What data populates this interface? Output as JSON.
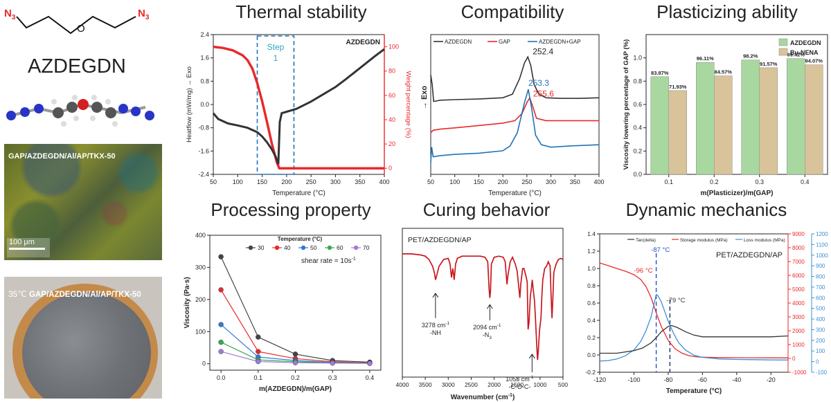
{
  "molecule": {
    "name": "AZDEGDN",
    "n3_left": "N",
    "n3_right": "N",
    "n3_sub": "3",
    "oxygen": "O"
  },
  "photos": {
    "sem_label": "GAP/AZDEGDN/Al/AP/TKX-50",
    "sem_scale": "100 µm",
    "photo_label_prefix": "35℃",
    "photo_label": "GAP/AZDEGDN/Al/AP/TKX-50"
  },
  "titles": {
    "thermal": "Thermal stability",
    "compat": "Compatibility",
    "plastic": "Plasticizing ability",
    "processing": "Processing property",
    "curing": "Curing behavior",
    "dynamic": "Dynamic mechanics"
  },
  "chart_data": [
    {
      "id": "thermal",
      "type": "line",
      "legend_label": "AZDEGDN",
      "xlabel": "Temperature (°C)",
      "ylabel_left": "Heatflow (mW/mg)",
      "ylabel_left_exo": "Exo",
      "ylabel_right": "Weight percentage (%)",
      "xlim": [
        50,
        400
      ],
      "ylim_left": [
        -2.4,
        2.4
      ],
      "ylim_right": [
        -5,
        110
      ],
      "xticks": [
        50,
        100,
        150,
        200,
        250,
        300,
        350,
        400
      ],
      "yticks_left": [
        -2.4,
        -1.6,
        -0.8,
        0.0,
        0.8,
        1.6,
        2.4
      ],
      "yticks_right": [
        0,
        20,
        40,
        60,
        80,
        100
      ],
      "annotation": "Step\n1",
      "annotation_lines": [
        "Step",
        "1"
      ],
      "step_box": [
        140,
        215
      ],
      "heatflow": {
        "x": [
          50,
          60,
          80,
          100,
          120,
          140,
          150,
          160,
          170,
          178,
          183,
          186,
          190,
          200,
          220,
          250,
          280,
          300,
          320,
          350,
          380,
          400
        ],
        "y": [
          -0.3,
          -0.5,
          -0.65,
          -0.72,
          -0.8,
          -0.95,
          -1.1,
          -1.3,
          -1.55,
          -1.8,
          -2.05,
          -0.6,
          -0.3,
          -0.25,
          -0.15,
          0.1,
          0.4,
          0.6,
          0.85,
          1.25,
          1.65,
          1.9
        ]
      },
      "weight": {
        "x": [
          50,
          70,
          90,
          110,
          120,
          130,
          140,
          150,
          160,
          170,
          180,
          185,
          200,
          250,
          300,
          350,
          400
        ],
        "y": [
          100,
          99,
          97,
          93,
          89,
          82,
          70,
          55,
          38,
          20,
          5,
          0,
          0,
          0,
          0,
          0,
          0
        ]
      },
      "colors": {
        "heatflow": "#333333",
        "weight": "#e8292b",
        "box": "#1e73b8",
        "annotation": "#2aa8b8"
      }
    },
    {
      "id": "compat",
      "type": "line",
      "xlabel": "Temperature (°C)",
      "ylabel": "Exo",
      "xlim": [
        50,
        400
      ],
      "ylim": [
        0,
        100
      ],
      "xticks": [
        50,
        100,
        150,
        200,
        250,
        300,
        350,
        400
      ],
      "series": [
        {
          "name": "AZDEGDN",
          "color": "#333333",
          "x": [
            50,
            53,
            56,
            70,
            100,
            150,
            200,
            220,
            235,
            245,
            252,
            258,
            265,
            275,
            290,
            320,
            360,
            400
          ],
          "y": [
            78,
            70,
            56,
            57,
            57.5,
            58,
            59,
            62,
            75,
            88,
            93,
            86,
            70,
            62,
            59,
            58.5,
            58.5,
            59
          ]
        },
        {
          "name": "GAP",
          "color": "#e8292b",
          "x": [
            50,
            55,
            70,
            100,
            150,
            200,
            225,
            240,
            250,
            256,
            262,
            270,
            290,
            320,
            360,
            400
          ],
          "y": [
            30,
            32,
            33,
            34,
            36,
            38,
            40,
            46,
            55,
            59,
            52,
            42,
            40,
            40,
            40,
            40
          ]
        },
        {
          "name": "AZDEGDN+GAP",
          "color": "#1e73b8",
          "x": [
            50,
            52,
            55,
            70,
            100,
            150,
            200,
            215,
            230,
            245,
            253,
            260,
            268,
            280,
            300,
            340,
            400
          ],
          "y": [
            5,
            18,
            10,
            11,
            12,
            13,
            15,
            19,
            30,
            55,
            66,
            50,
            28,
            20,
            18,
            19,
            20
          ]
        }
      ],
      "annotations": [
        {
          "text": "252.4",
          "color": "#222222"
        },
        {
          "text": "253.3",
          "color": "#1e73b8"
        },
        {
          "text": "255.6",
          "color": "#e8292b"
        }
      ]
    },
    {
      "id": "plastic",
      "type": "bar",
      "categories": [
        "0.1",
        "0.2",
        "0.3",
        "0.4"
      ],
      "series": [
        {
          "name": "AZDEGDN",
          "values": [
            83.87,
            96.11,
            98.2,
            99.42
          ],
          "labels": [
            "83.87%",
            "96.11%",
            "98.2%",
            "99.42%"
          ],
          "color": "#a8d8a0"
        },
        {
          "name": "Bu-NENA",
          "values": [
            71.93,
            84.57,
            91.57,
            94.07
          ],
          "labels": [
            "71.93%",
            "84.57%",
            "91.57%",
            "94.07%"
          ],
          "color": "#d9c39a"
        }
      ],
      "xlabel": "m(Plasticizer)/m(GAP)",
      "ylabel": "Viscosity lowering percentage of GAP (%)",
      "ylim": [
        0,
        1.0
      ],
      "yticks": [
        0.0,
        0.2,
        0.4,
        0.6,
        0.8,
        1.0
      ]
    },
    {
      "id": "processing",
      "type": "scatter",
      "x": [
        0.0,
        0.1,
        0.2,
        0.3,
        0.4
      ],
      "series": [
        {
          "name": "30",
          "color": "#444444",
          "values": [
            333,
            83,
            30,
            10,
            5
          ]
        },
        {
          "name": "40",
          "color": "#e8292b",
          "values": [
            230,
            38,
            16,
            6,
            3
          ]
        },
        {
          "name": "50",
          "color": "#2f7bd8",
          "values": [
            122,
            21,
            10,
            4,
            2
          ]
        },
        {
          "name": "60",
          "color": "#33aa55",
          "values": [
            67,
            12,
            6,
            3,
            1.5
          ]
        },
        {
          "name": "70",
          "color": "#a07ad6",
          "values": [
            38,
            7,
            3,
            2,
            1
          ]
        }
      ],
      "legend_title": "Temperature (°C)",
      "annotation": "shear rate = 10s",
      "annotation_sup": "-1",
      "xlabel": "m(AZDEGDN)/m(GAP)",
      "ylabel": "Viscosity (Pa·s)",
      "xlim": [
        -0.03,
        0.43
      ],
      "ylim": [
        -20,
        400
      ],
      "xticks": [
        0.0,
        0.1,
        0.2,
        0.3,
        0.4
      ],
      "yticks": [
        0,
        100,
        200,
        300,
        400
      ]
    },
    {
      "id": "curing",
      "type": "line",
      "label": "PET/AZDEGDN/AP",
      "xlabel": "Wavenumber (cm",
      "xlabel_sup": "-1",
      "xlabel_end": ")",
      "xlim": [
        4000,
        500
      ],
      "xticks": [
        4000,
        3500,
        3000,
        2500,
        2000,
        1500,
        1000,
        500
      ],
      "ylim": [
        0,
        100
      ],
      "spectrum": {
        "x": [
          4000,
          3800,
          3600,
          3500,
          3420,
          3340,
          3300,
          3278,
          3250,
          3200,
          3100,
          3000,
          2960,
          2930,
          2900,
          2870,
          2840,
          2800,
          2700,
          2500,
          2300,
          2200,
          2140,
          2110,
          2094,
          2080,
          2060,
          2000,
          1900,
          1800,
          1760,
          1735,
          1720,
          1700,
          1650,
          1600,
          1540,
          1500,
          1460,
          1440,
          1420,
          1380,
          1350,
          1300,
          1280,
          1260,
          1240,
          1210,
          1190,
          1170,
          1150,
          1120,
          1100,
          1080,
          1060,
          1053,
          1040,
          1010,
          980,
          960,
          940,
          900,
          860,
          820,
          780,
          760,
          740,
          720,
          700,
          680,
          650,
          600,
          550,
          500
        ],
        "y": [
          97,
          97,
          96,
          95,
          92,
          86,
          80,
          74,
          78,
          86,
          92,
          93,
          88,
          76,
          84,
          74,
          88,
          93,
          95,
          95,
          95,
          94,
          90,
          66,
          58,
          64,
          88,
          94,
          95,
          94,
          90,
          78,
          70,
          78,
          90,
          94,
          88,
          82,
          66,
          58,
          70,
          84,
          84,
          76,
          72,
          30,
          36,
          60,
          66,
          74,
          66,
          55,
          40,
          22,
          6,
          3,
          10,
          30,
          40,
          60,
          74,
          84,
          86,
          90,
          86,
          60,
          40,
          58,
          80,
          84,
          88,
          92,
          93,
          92
        ]
      },
      "annotations": [
        {
          "lines": [
            "3278 cm",
            "-NH"
          ],
          "sup": "-1"
        },
        {
          "lines": [
            "2094 cm",
            "-N"
          ],
          "sup": "-1",
          "sub": "3"
        },
        {
          "lines": [
            "1053 cm",
            "-C-O-C-"
          ],
          "sup": "-1"
        }
      ],
      "color": "#c8161d"
    },
    {
      "id": "dynamic",
      "type": "line",
      "label": "PET/AZDEGDN/AP",
      "xlabel": "Temperature (°C)",
      "xlim": [
        -120,
        -10
      ],
      "xticks": [
        -120,
        -100,
        -80,
        -60,
        -40,
        -20
      ],
      "ylim_left": [
        -0.2,
        1.4
      ],
      "yticks_left": [
        -0.2,
        0.0,
        0.2,
        0.4,
        0.6,
        0.8,
        1.0,
        1.2,
        1.4
      ],
      "ylim_right1": [
        -1000,
        9000
      ],
      "yticks_right1": [
        -1000,
        0,
        1000,
        2000,
        3000,
        4000,
        5000,
        6000,
        7000,
        8000,
        9000
      ],
      "ylim_right2": [
        -100,
        1200
      ],
      "yticks_right2": [
        -100,
        0,
        100,
        200,
        300,
        400,
        500,
        600,
        700,
        800,
        900,
        1000,
        1100,
        1200
      ],
      "legend": [
        "Tan(delta)",
        "Storage modulus (MPa)",
        "Loss modulus (MPa)"
      ],
      "annotations": [
        {
          "text": "-96 °C",
          "color": "#e8292b"
        },
        {
          "text": "-87 °C",
          "color": "#1e4fd0"
        },
        {
          "text": "-79 °C",
          "color": "#333333"
        }
      ],
      "vlines": [
        -87,
        -79
      ],
      "tan_delta": {
        "x": [
          -120,
          -110,
          -100,
          -95,
          -90,
          -87,
          -84,
          -80,
          -78,
          -75,
          -70,
          -65,
          -60,
          -50,
          -40,
          -30,
          -20,
          -10
        ],
        "y": [
          0.02,
          0.02,
          0.05,
          0.08,
          0.14,
          0.2,
          0.27,
          0.33,
          0.34,
          0.32,
          0.27,
          0.23,
          0.21,
          0.21,
          0.21,
          0.21,
          0.21,
          0.22
        ]
      },
      "storage": {
        "x": [
          -120,
          -115,
          -110,
          -105,
          -100,
          -96,
          -93,
          -90,
          -87,
          -84,
          -80,
          -76,
          -72,
          -68,
          -64,
          -60,
          -50,
          -40,
          -30,
          -20,
          -10
        ],
        "y": [
          6900,
          6700,
          6500,
          6300,
          6050,
          5700,
          5200,
          4400,
          3300,
          2300,
          1300,
          700,
          380,
          200,
          120,
          90,
          60,
          50,
          45,
          40,
          40
        ]
      },
      "loss": {
        "x": [
          -120,
          -115,
          -110,
          -105,
          -100,
          -96,
          -93,
          -90,
          -88,
          -87,
          -86,
          -84,
          -82,
          -80,
          -77,
          -74,
          -70,
          -65,
          -60,
          -50,
          -40,
          -30,
          -20,
          -10
        ],
        "y": [
          5,
          10,
          25,
          55,
          110,
          190,
          290,
          420,
          560,
          630,
          620,
          560,
          470,
          380,
          270,
          180,
          110,
          60,
          40,
          25,
          20,
          18,
          16,
          15
        ]
      },
      "colors": {
        "tan": "#333333",
        "storage": "#e8292b",
        "loss": "#3a8fd6",
        "vline_blue": "#1e4fd0",
        "vline_dark": "#1b2f6b"
      }
    }
  ]
}
